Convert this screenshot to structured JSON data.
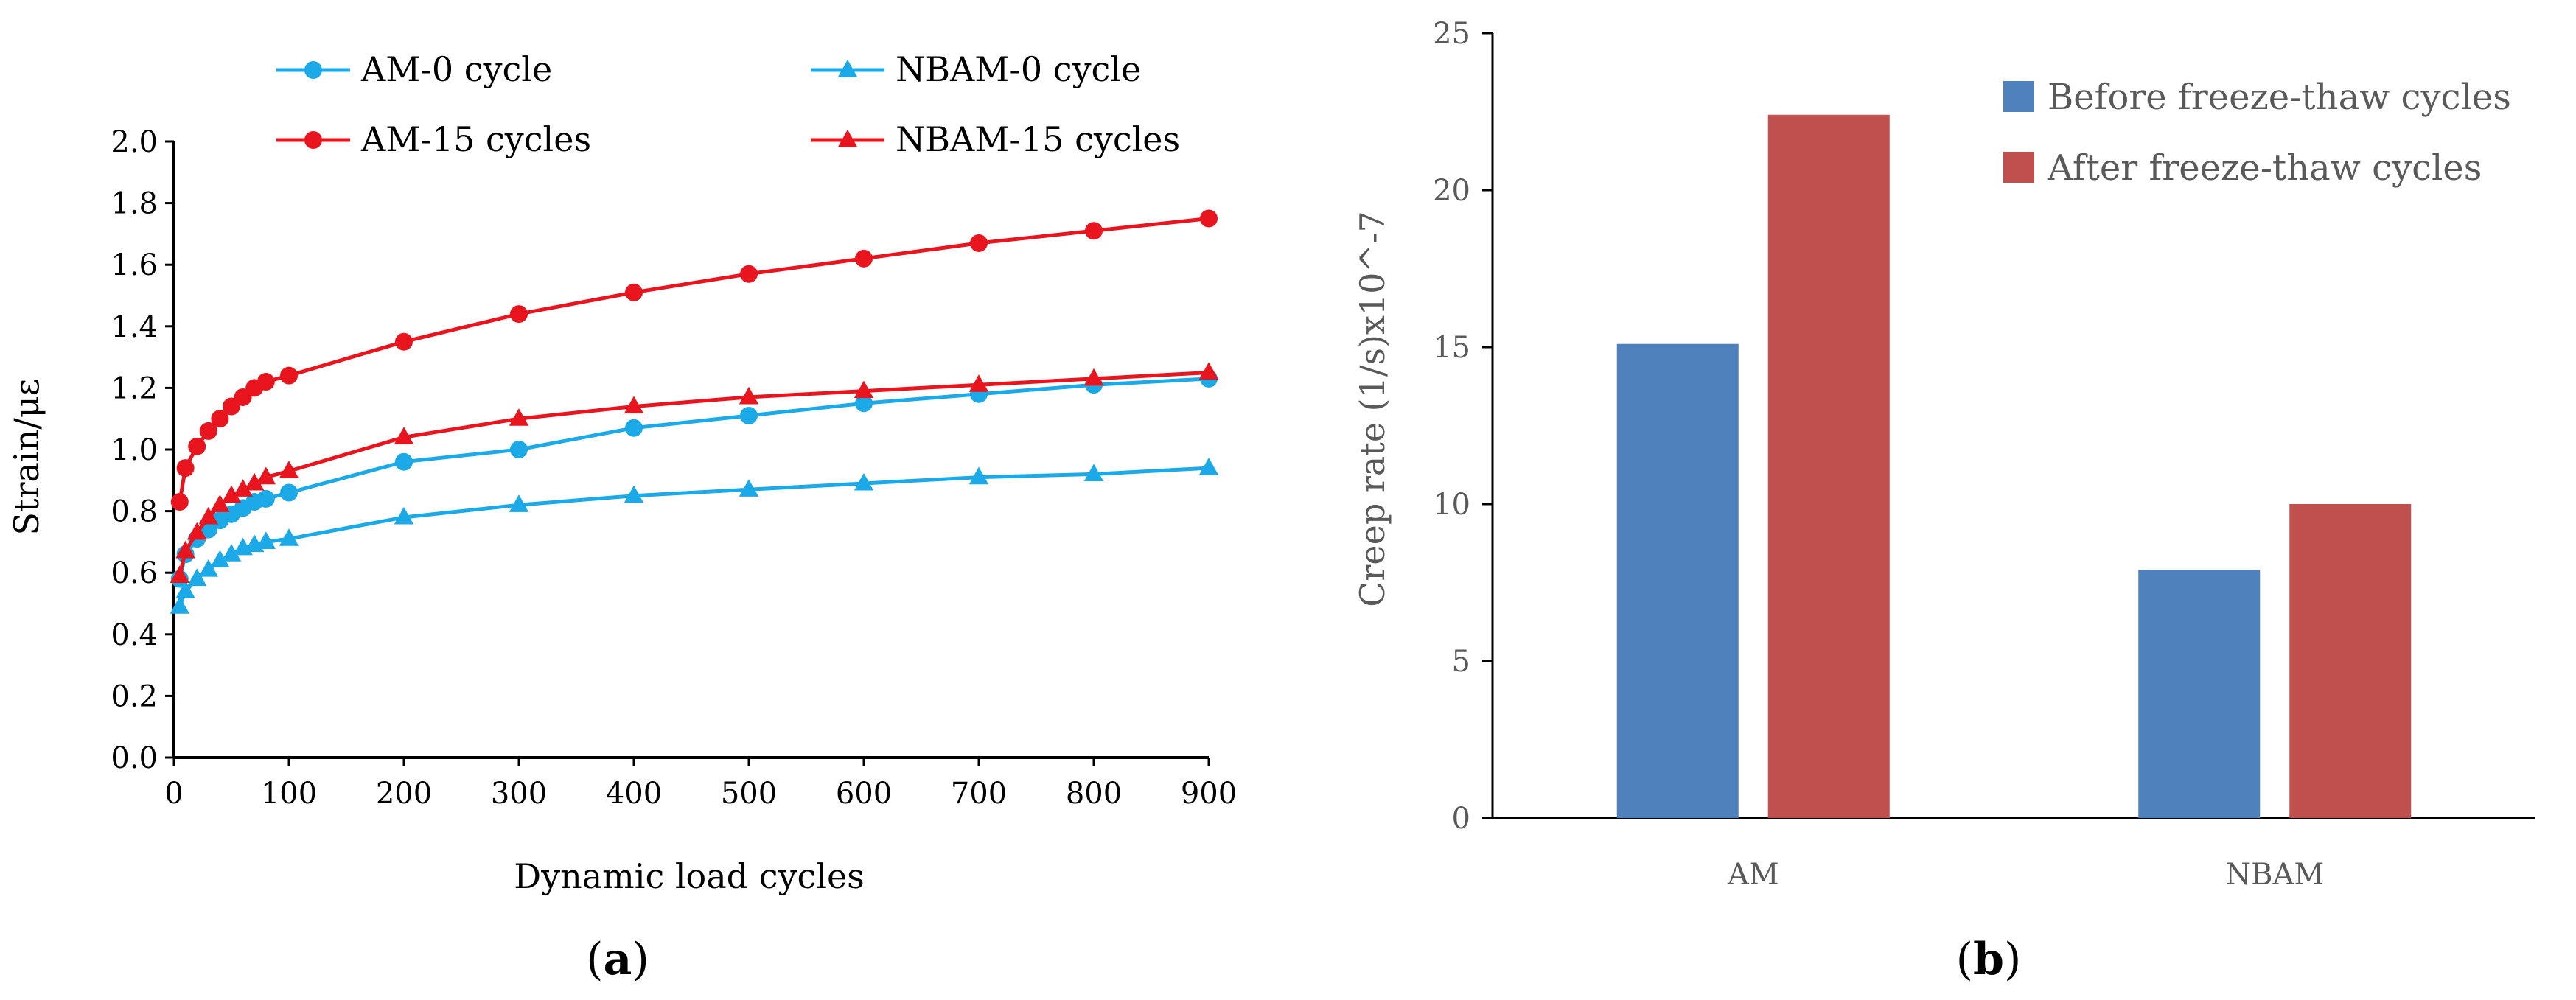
{
  "chart_data": [
    {
      "type": "line",
      "panel_label": "a",
      "xlabel": "Dynamic load cycles",
      "ylabel": "Strain/με",
      "xlim": [
        0,
        900
      ],
      "ylim": [
        0,
        2.0
      ],
      "x_ticks": [
        0,
        100,
        200,
        300,
        400,
        500,
        600,
        700,
        800,
        900
      ],
      "y_ticks": [
        0.0,
        0.2,
        0.4,
        0.6,
        0.8,
        1.0,
        1.2,
        1.4,
        1.6,
        1.8,
        2.0
      ],
      "x_tick_labels": [
        "0",
        "100",
        "200",
        "300",
        "400",
        "500",
        "600",
        "700",
        "800",
        "900"
      ],
      "y_tick_labels": [
        "0.0",
        "0.2",
        "0.4",
        "0.6",
        "0.8",
        "1.0",
        "1.2",
        "1.4",
        "1.6",
        "1.8",
        "2.0"
      ],
      "legend": {
        "position": "top"
      },
      "series": [
        {
          "name": "AM-0 cycle",
          "color": "#1BA9E8",
          "marker": "circle",
          "x": [
            5,
            10,
            20,
            30,
            40,
            50,
            60,
            70,
            80,
            100,
            200,
            300,
            400,
            500,
            600,
            700,
            800,
            900
          ],
          "y": [
            0.58,
            0.66,
            0.71,
            0.74,
            0.77,
            0.79,
            0.81,
            0.83,
            0.84,
            0.86,
            0.96,
            1.0,
            1.07,
            1.11,
            1.15,
            1.18,
            1.21,
            1.23
          ]
        },
        {
          "name": "NBAM-0 cycle",
          "color": "#1BA9E8",
          "marker": "triangle",
          "x": [
            5,
            10,
            20,
            30,
            40,
            50,
            60,
            70,
            80,
            100,
            200,
            300,
            400,
            500,
            600,
            700,
            800,
            900
          ],
          "y": [
            0.49,
            0.54,
            0.58,
            0.61,
            0.64,
            0.66,
            0.68,
            0.69,
            0.7,
            0.71,
            0.78,
            0.82,
            0.85,
            0.87,
            0.89,
            0.91,
            0.92,
            0.94
          ]
        },
        {
          "name": "AM-15 cycles",
          "color": "#E8141E",
          "marker": "circle",
          "x": [
            5,
            10,
            20,
            30,
            40,
            50,
            60,
            70,
            80,
            100,
            200,
            300,
            400,
            500,
            600,
            700,
            800,
            900
          ],
          "y": [
            0.83,
            0.94,
            1.01,
            1.06,
            1.1,
            1.14,
            1.17,
            1.2,
            1.22,
            1.24,
            1.35,
            1.44,
            1.51,
            1.57,
            1.62,
            1.67,
            1.71,
            1.75
          ]
        },
        {
          "name": "NBAM-15 cycles",
          "color": "#E8141E",
          "marker": "triangle",
          "x": [
            5,
            10,
            20,
            30,
            40,
            50,
            60,
            70,
            80,
            100,
            200,
            300,
            400,
            500,
            600,
            700,
            800,
            900
          ],
          "y": [
            0.59,
            0.67,
            0.73,
            0.78,
            0.82,
            0.85,
            0.87,
            0.89,
            0.91,
            0.93,
            1.04,
            1.1,
            1.14,
            1.17,
            1.19,
            1.21,
            1.23,
            1.25
          ]
        }
      ]
    },
    {
      "type": "bar",
      "panel_label": "b",
      "xlabel": "",
      "ylabel": "Creep rate (1/s)x10^-7",
      "ylim": [
        0,
        25
      ],
      "y_ticks": [
        0,
        5,
        10,
        15,
        20,
        25
      ],
      "y_tick_labels": [
        "0",
        "5",
        "10",
        "15",
        "20",
        "25"
      ],
      "categories": [
        "AM",
        "NBAM"
      ],
      "legend": {
        "position": "top-right"
      },
      "series": [
        {
          "name": "Before freeze-thaw cycles",
          "color": "#4F81BD",
          "values": [
            15.1,
            7.9
          ]
        },
        {
          "name": "After freeze-thaw cycles",
          "color": "#C0504D",
          "values": [
            22.4,
            10.0
          ]
        }
      ]
    }
  ]
}
